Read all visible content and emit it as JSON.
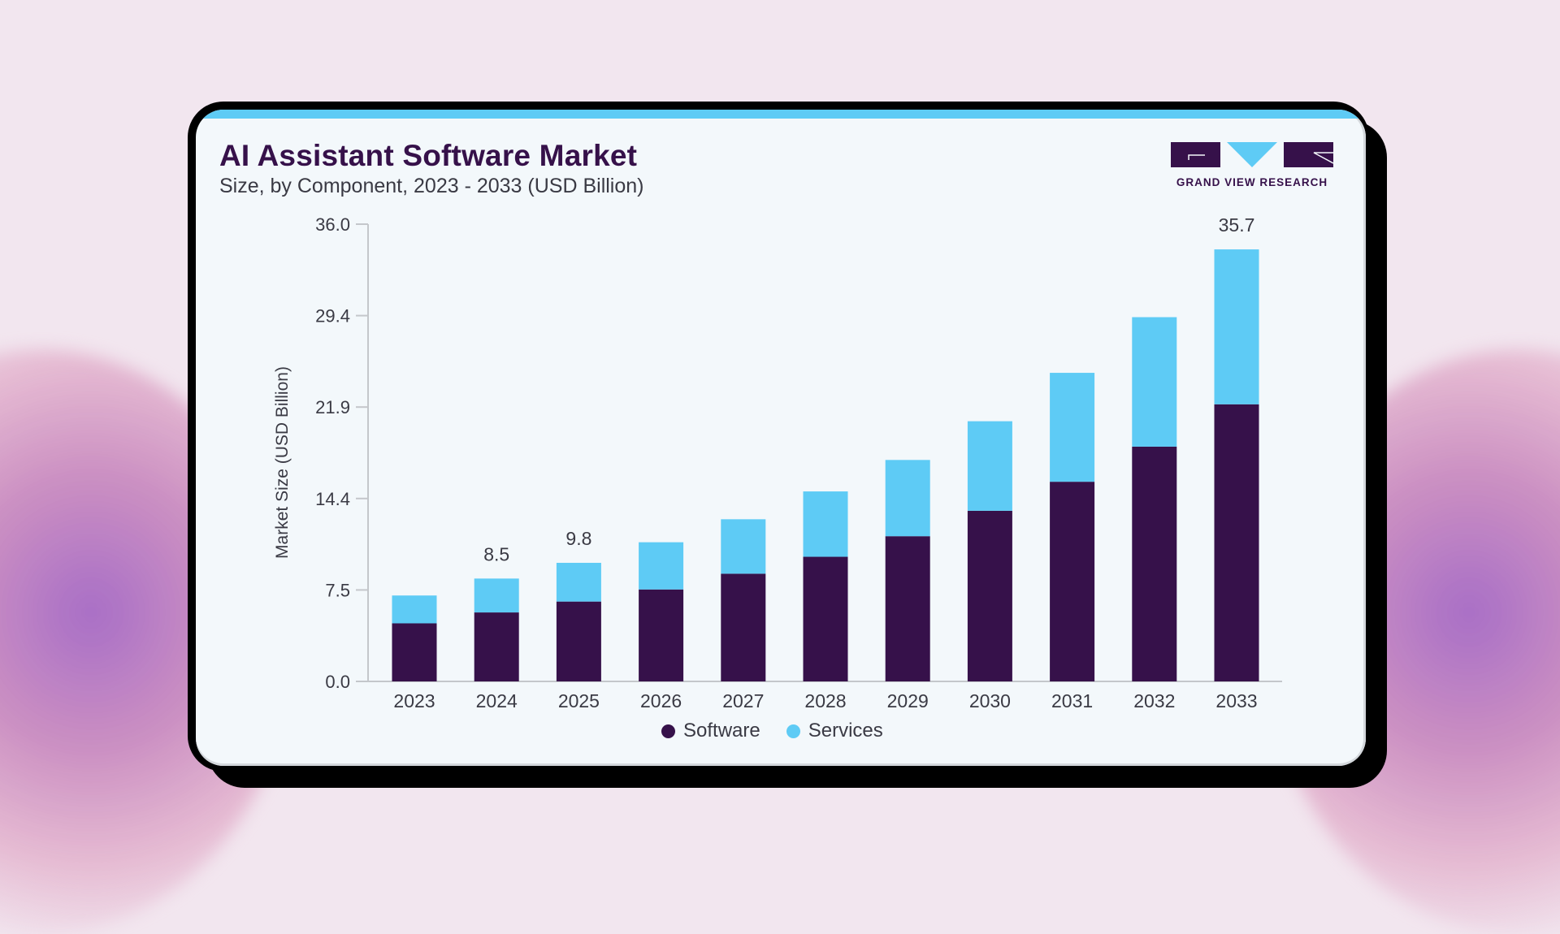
{
  "header": {
    "title": "AI Assistant Software Market",
    "subtitle": "Size, by Component, 2023 - 2033 (USD Billion)"
  },
  "logo": {
    "text": "GRAND VIEW RESEARCH",
    "icon": "grand-view-research-logo",
    "colors": {
      "primary": "#36114a",
      "accent": "#5ecbf5"
    }
  },
  "colors": {
    "software": "#36114a",
    "services": "#5ecbf5",
    "card_bg": "#f3f8fb",
    "strip": "#5ecbf5"
  },
  "chart_data": {
    "type": "bar",
    "stacked": true,
    "title": "AI Assistant Software Market",
    "subtitle": "Size, by Component, 2023 - 2033 (USD Billion)",
    "xlabel": "",
    "ylabel": "Market Size (USD Billion)",
    "categories": [
      "2023",
      "2024",
      "2025",
      "2026",
      "2027",
      "2028",
      "2029",
      "2030",
      "2031",
      "2032",
      "2033"
    ],
    "series": [
      {
        "name": "Software",
        "color": "#36114a",
        "values": [
          4.8,
          5.7,
          6.6,
          7.6,
          8.9,
          10.3,
          12.0,
          14.1,
          16.5,
          19.4,
          22.9
        ]
      },
      {
        "name": "Services",
        "color": "#5ecbf5",
        "values": [
          2.3,
          2.8,
          3.2,
          3.9,
          4.5,
          5.4,
          6.3,
          7.4,
          9.0,
          10.7,
          12.8
        ]
      }
    ],
    "totals": [
      7.1,
      8.5,
      9.8,
      11.5,
      13.4,
      15.7,
      18.3,
      21.5,
      25.5,
      30.1,
      35.7
    ],
    "data_labels": [
      {
        "category": "2024",
        "text": "8.5"
      },
      {
        "category": "2025",
        "text": "9.8"
      },
      {
        "category": "2033",
        "text": "35.7"
      }
    ],
    "yticks": [
      "0.0",
      "7.5",
      "14.4",
      "21.9",
      "29.4",
      "36.0"
    ],
    "ylim": [
      0,
      36.0
    ],
    "grid": false,
    "legend": {
      "position": "bottom-center",
      "entries": [
        "Software",
        "Services"
      ]
    }
  }
}
